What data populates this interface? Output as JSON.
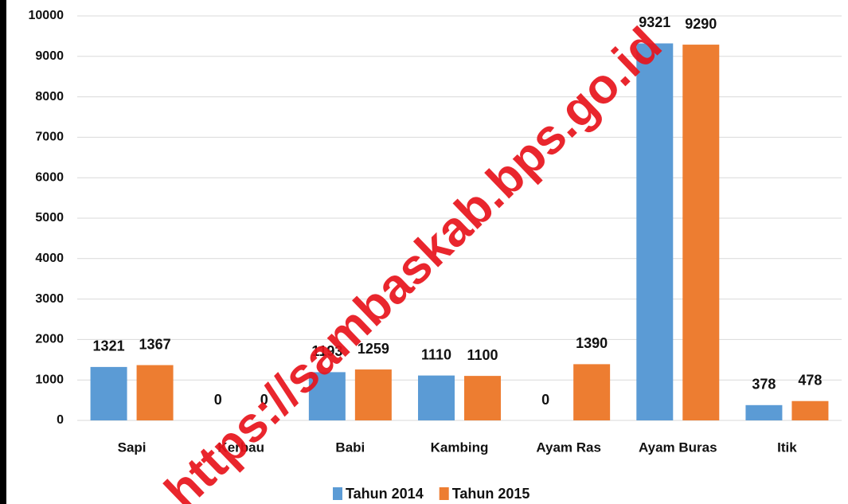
{
  "chart_data": {
    "type": "bar",
    "categories": [
      "Sapi",
      "Kerbau",
      "Babi",
      "Kambing",
      "Ayam Ras",
      "Ayam Buras",
      "Itik"
    ],
    "series": [
      {
        "name": "Tahun 2014",
        "color": "#5b9bd5",
        "values": [
          1321,
          0,
          1193,
          1110,
          0,
          9321,
          378
        ]
      },
      {
        "name": "Tahun 2015",
        "color": "#ed7d31",
        "values": [
          1367,
          0,
          1259,
          1100,
          1390,
          9290,
          478
        ]
      }
    ],
    "ylim": [
      0,
      10000
    ],
    "yticks": [
      0,
      1000,
      2000,
      3000,
      4000,
      5000,
      6000,
      7000,
      8000,
      9000,
      10000
    ],
    "grid": true,
    "legend": "bottom",
    "watermark": "https://sambaskab.bps.go.id"
  }
}
